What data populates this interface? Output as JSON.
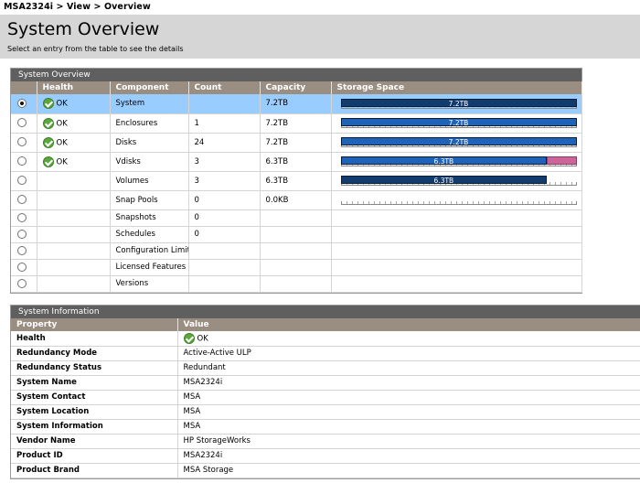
{
  "breadcrumb": "MSA2324i > View > Overview",
  "header": {
    "title": "System Overview",
    "subtitle": "Select an entry from the table to see the details"
  },
  "overview": {
    "panel_title": "System Overview",
    "columns": [
      "Health",
      "Component",
      "Count",
      "Capacity",
      "Storage Space"
    ],
    "rows": [
      {
        "selected": true,
        "health": "OK",
        "component": "System",
        "count": "",
        "capacity": "7.2TB",
        "bar": {
          "label": "7.2TB",
          "fill": 1.0,
          "color": "#123b6e",
          "pink": 0
        }
      },
      {
        "selected": false,
        "health": "OK",
        "component": "Enclosures",
        "count": "1",
        "capacity": "7.2TB",
        "bar": {
          "label": "7.2TB",
          "fill": 1.0,
          "color": "#1f63b8",
          "pink": 0
        }
      },
      {
        "selected": false,
        "health": "OK",
        "component": "Disks",
        "count": "24",
        "capacity": "7.2TB",
        "bar": {
          "label": "7.2TB",
          "fill": 1.0,
          "color": "#1f63b8",
          "pink": 0
        }
      },
      {
        "selected": false,
        "health": "OK",
        "component": "Vdisks",
        "count": "3",
        "capacity": "6.3TB",
        "bar": {
          "label": "6.3TB",
          "fill": 0.875,
          "color": "#1f63b8",
          "pink": 0.125
        }
      },
      {
        "selected": false,
        "health": "",
        "component": "Volumes",
        "count": "3",
        "capacity": "6.3TB",
        "bar": {
          "label": "6.3TB",
          "fill": 0.875,
          "color": "#123b6e",
          "pink": 0
        }
      },
      {
        "selected": false,
        "health": "",
        "component": "Snap Pools",
        "count": "0",
        "capacity": "0.0KB",
        "bar": {
          "label": "",
          "fill": 0,
          "color": "#123b6e",
          "pink": 0
        }
      },
      {
        "selected": false,
        "health": "",
        "component": "Snapshots",
        "count": "0",
        "capacity": "",
        "bar": null
      },
      {
        "selected": false,
        "health": "",
        "component": "Schedules",
        "count": "0",
        "capacity": "",
        "bar": null
      },
      {
        "selected": false,
        "health": "",
        "component": "Configuration Limits",
        "count": "",
        "capacity": "",
        "bar": null
      },
      {
        "selected": false,
        "health": "",
        "component": "Licensed Features",
        "count": "",
        "capacity": "",
        "bar": null
      },
      {
        "selected": false,
        "health": "",
        "component": "Versions",
        "count": "",
        "capacity": "",
        "bar": null
      }
    ]
  },
  "info": {
    "panel_title": "System Information",
    "columns": [
      "Property",
      "Value"
    ],
    "rows": [
      {
        "property": "Health",
        "value": "OK",
        "icon": "ok-icon"
      },
      {
        "property": "Redundancy Mode",
        "value": "Active-Active ULP"
      },
      {
        "property": "Redundancy Status",
        "value": "Redundant"
      },
      {
        "property": "System Name",
        "value": "MSA2324i"
      },
      {
        "property": "System Contact",
        "value": "MSA"
      },
      {
        "property": "System Location",
        "value": "MSA"
      },
      {
        "property": "System Information",
        "value": "MSA"
      },
      {
        "property": "Vendor Name",
        "value": "HP StorageWorks"
      },
      {
        "property": "Product ID",
        "value": "MSA2324i"
      },
      {
        "property": "Product Brand",
        "value": "MSA Storage"
      }
    ]
  }
}
